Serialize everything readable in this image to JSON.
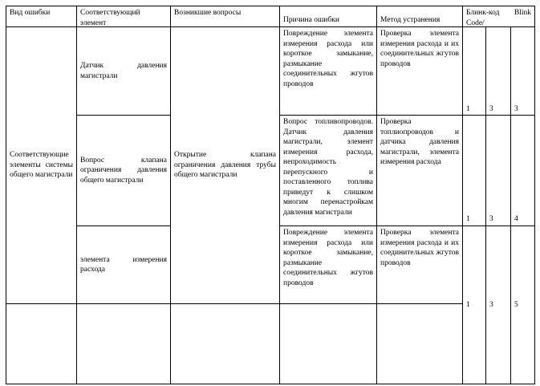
{
  "table": {
    "headers": [
      "Вид ошибки",
      "Соответствующий элемент",
      "Возникшие вопросы",
      "Причина ошибки",
      "Метод устранения",
      "Блинк-код Blink Code/"
    ],
    "error_type": "Соответствующие элементы системы общего магистрали",
    "issue": "Открытие клапана ограничения давления трубы общего магистрали",
    "rows": [
      {
        "element": "Датчик давления магистрали",
        "cause": "Повреждение элемента измерения расхода или короткое замыкание, размыкание соединительных жгутов проводов",
        "method": "Проверка элемента измерения расхода и их соединительных жгутов проводов",
        "blink": [
          1,
          3,
          3
        ]
      },
      {
        "element": "Вопрос клапана ограничения давления общего магистрали",
        "cause": "Вопрос топливопроводов. Датчик давления магистрали, элемент измерения расхода, непроходимость перепускного и поставленного топлива приведут к слишком многим перенастройкам давления магистрали",
        "method": "Проверка топлиопроводов и датчика давления магистрали, элемента измерения расхода",
        "blink": [
          1,
          3,
          4
        ]
      },
      {
        "element": "элемента измерения расхода",
        "cause": "Повреждение элемента измерения расхода или короткое замыкание, размыкание соединительных жгутов проводов",
        "method": "Проверка элемента измерения расхода и их соединительных жгутов проводов",
        "blink": [
          1,
          3,
          5
        ]
      }
    ]
  }
}
